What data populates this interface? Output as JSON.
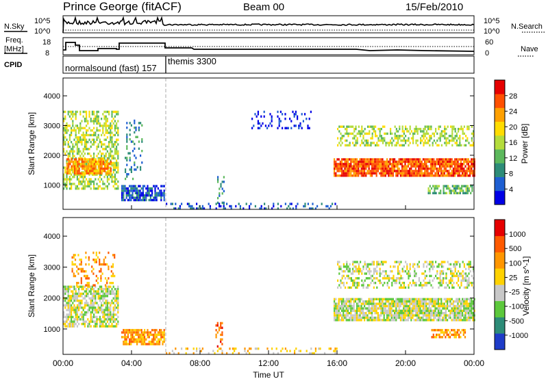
{
  "header": {
    "station": "Prince George (fitACF)",
    "beam": "Beam 00",
    "date": "15/Feb/2010"
  },
  "left_labels": {
    "nsky": "N.Sky",
    "freq_line1": "Freq.",
    "freq_line2": "[MHz]",
    "cpid": "CPID"
  },
  "right_labels": {
    "nsearch": "N.Search",
    "nave": "Nave"
  },
  "axis_texts": {
    "nsky_top": "10^5",
    "nsky_bottom": "10^0",
    "nsearch_top": "10^5",
    "nsearch_bottom": "10^0",
    "freq_top": "18",
    "freq_bottom": "8",
    "nave_top": "60",
    "nave_bottom": "0"
  },
  "cpid_modes": [
    {
      "label": "normalsound (fast) 157",
      "start_hour": 0,
      "end_hour": 6
    },
    {
      "label": "themis 3300",
      "start_hour": 6,
      "end_hour": 24
    }
  ],
  "chart_data": [
    {
      "type": "heatmap",
      "name": "power-panel",
      "xlabel": "",
      "ylabel": "Slant Range [km]",
      "xlim": [
        0,
        24
      ],
      "ylim": [
        180,
        4600
      ],
      "x_ticks": [
        "00:00",
        "04:00",
        "08:00",
        "12:00",
        "16:00",
        "20:00",
        "00:00"
      ],
      "y_ticks": [
        1000,
        2000,
        3000,
        4000
      ],
      "colorbar": {
        "label": "Power [dB]",
        "ticks": [
          "28",
          "24",
          "20",
          "16",
          "12",
          "8",
          "4"
        ],
        "colors": [
          "#0000e6",
          "#1e5fd2",
          "#2d8c78",
          "#5cb85c",
          "#b4dc3c",
          "#ffdc00",
          "#ffa000",
          "#ff5000",
          "#e60000"
        ]
      },
      "echo_regions": [
        {
          "t0": 0.0,
          "t1": 3.2,
          "r0": 900,
          "r1": 3500,
          "level": 4,
          "density": 0.55
        },
        {
          "t0": 0.2,
          "t1": 2.8,
          "r0": 1400,
          "r1": 1900,
          "level": 6,
          "density": 0.8
        },
        {
          "t0": 3.4,
          "t1": 5.9,
          "r0": 500,
          "r1": 1000,
          "level": 1,
          "density": 0.7
        },
        {
          "t0": 3.6,
          "t1": 4.6,
          "r0": 1200,
          "r1": 3200,
          "level": 2,
          "density": 0.2
        },
        {
          "t0": 9.0,
          "t1": 9.4,
          "r0": 300,
          "r1": 1300,
          "level": 2,
          "density": 0.4
        },
        {
          "t0": 11.0,
          "t1": 14.5,
          "r0": 2900,
          "r1": 3500,
          "level": 0,
          "density": 0.2
        },
        {
          "t0": 15.8,
          "t1": 24.0,
          "r0": 1300,
          "r1": 1900,
          "level": 7,
          "density": 0.9
        },
        {
          "t0": 16.0,
          "t1": 24.0,
          "r0": 2300,
          "r1": 3000,
          "level": 4,
          "density": 0.45
        },
        {
          "t0": 21.3,
          "t1": 23.9,
          "r0": 700,
          "r1": 1000,
          "level": 3,
          "density": 0.7
        },
        {
          "t0": 6.0,
          "t1": 16.0,
          "r0": 200,
          "r1": 400,
          "level": 1,
          "density": 0.25
        }
      ]
    },
    {
      "type": "heatmap",
      "name": "velocity-panel",
      "xlabel": "Time UT",
      "ylabel": "Slant Range [km]",
      "xlim": [
        0,
        24
      ],
      "ylim": [
        180,
        4600
      ],
      "x_ticks": [
        "00:00",
        "04:00",
        "08:00",
        "12:00",
        "16:00",
        "20:00",
        "00:00"
      ],
      "y_ticks": [
        1000,
        2000,
        3000,
        4000
      ],
      "colorbar": {
        "label": "Velocity [m s^-1]",
        "ticks": [
          "1000",
          "500",
          "100",
          "25",
          "-25",
          "-100",
          "-500",
          "-1000"
        ],
        "colors": [
          "#1e3cc8",
          "#2d8c78",
          "#5cc83c",
          "#c8c8c8",
          "#ffd200",
          "#ff9600",
          "#ff5a00",
          "#e60000"
        ]
      },
      "echo_regions": [
        {
          "t0": 0.0,
          "t1": 3.2,
          "r0": 1100,
          "r1": 2400,
          "level": 3,
          "density": 0.7
        },
        {
          "t0": 0.5,
          "t1": 3.0,
          "r0": 2400,
          "r1": 3500,
          "level": 5,
          "density": 0.25
        },
        {
          "t0": 3.4,
          "t1": 5.9,
          "r0": 500,
          "r1": 1000,
          "level": 5,
          "density": 0.8
        },
        {
          "t0": 8.9,
          "t1": 9.3,
          "r0": 400,
          "r1": 1300,
          "level": 6,
          "density": 0.4
        },
        {
          "t0": 15.8,
          "t1": 24.0,
          "r0": 1300,
          "r1": 2000,
          "level": 3,
          "density": 0.85
        },
        {
          "t0": 16.0,
          "t1": 24.0,
          "r0": 2300,
          "r1": 3200,
          "level": 3,
          "density": 0.4
        },
        {
          "t0": 21.5,
          "t1": 23.5,
          "r0": 700,
          "r1": 1000,
          "level": 5,
          "density": 0.7
        },
        {
          "t0": 6.0,
          "t1": 16.0,
          "r0": 200,
          "r1": 400,
          "level": 4,
          "density": 0.25
        }
      ]
    }
  ]
}
